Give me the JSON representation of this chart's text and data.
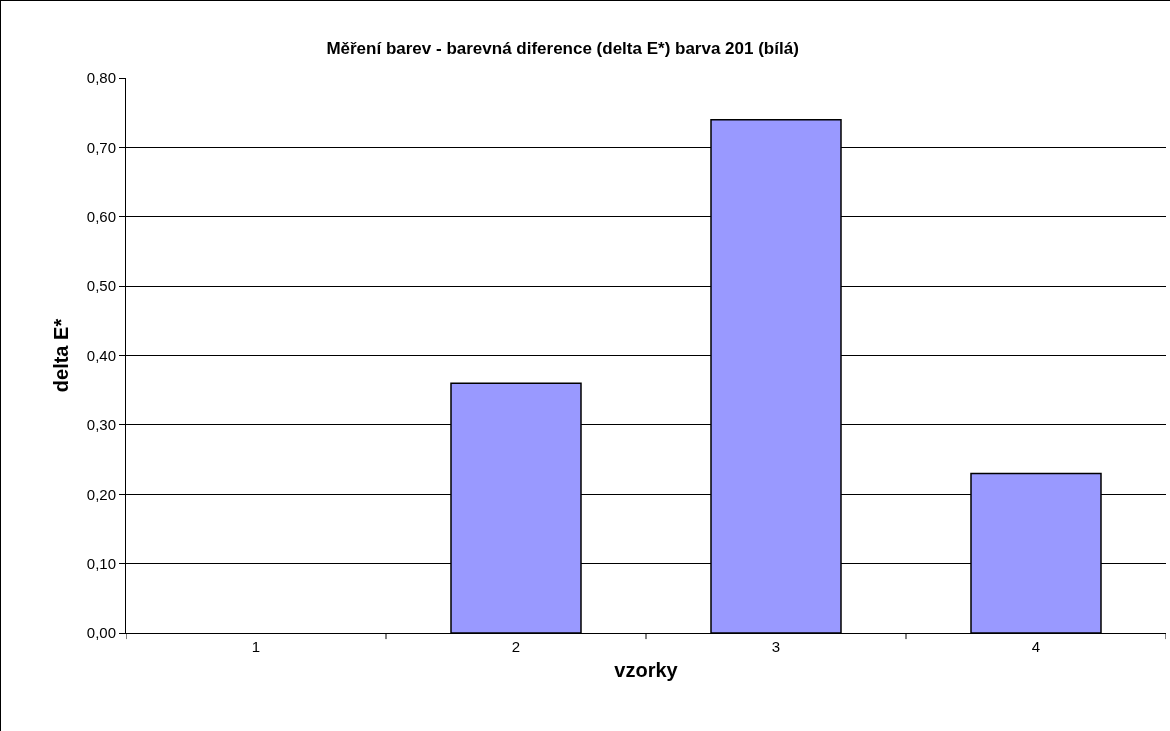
{
  "chart_data": {
    "type": "bar",
    "title": "Měření barev - barevná diference (delta E*) barva 201 (bílá)",
    "xlabel": "vzorky",
    "ylabel": "delta E*",
    "categories": [
      "1",
      "2",
      "3",
      "4"
    ],
    "values": [
      0,
      0.36,
      0.74,
      0.23
    ],
    "color": "#9999ff",
    "ylim": [
      0,
      0.8
    ],
    "yticks": [
      {
        "value": 0,
        "label": "0,00"
      },
      {
        "value": 0.1,
        "label": "0,10"
      },
      {
        "value": 0.2,
        "label": "0,20"
      },
      {
        "value": 0.3,
        "label": "0,30"
      },
      {
        "value": 0.4,
        "label": "0,40"
      },
      {
        "value": 0.5,
        "label": "0,50"
      },
      {
        "value": 0.6,
        "label": "0,60"
      },
      {
        "value": 0.7,
        "label": "0,70"
      },
      {
        "value": 0.8,
        "label": "0,80"
      }
    ],
    "grid": "y"
  }
}
